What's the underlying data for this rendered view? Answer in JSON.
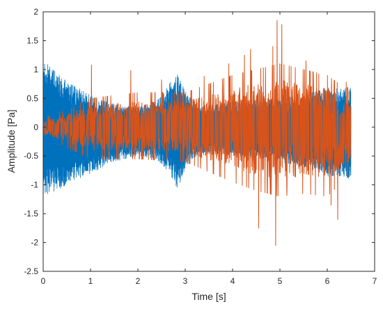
{
  "chart_data": {
    "type": "line",
    "title": "",
    "xlabel": "Time [s]",
    "ylabel": "Amplitude [Pa]",
    "xlim": [
      0,
      7
    ],
    "ylim": [
      -2.5,
      2
    ],
    "xticks": [
      "0",
      "1",
      "2",
      "3",
      "4",
      "5",
      "6",
      "7"
    ],
    "yticks": [
      "2",
      "1.5",
      "1",
      "0.5",
      "0",
      "-0.5",
      "-1",
      "-1.5",
      "-2",
      "-2.5"
    ],
    "grid": false,
    "legend": "none",
    "series": [
      {
        "color": "#0072BD",
        "description": "dense oscillating signal, 0 to 6.5 s",
        "envelope": [
          {
            "t": 0.0,
            "max": 1.15,
            "min": -1.2
          },
          {
            "t": 0.3,
            "max": 0.95,
            "min": -1.1
          },
          {
            "t": 0.6,
            "max": 0.75,
            "min": -0.95
          },
          {
            "t": 1.0,
            "max": 0.55,
            "min": -0.8
          },
          {
            "t": 1.5,
            "max": 0.4,
            "min": -0.6
          },
          {
            "t": 2.0,
            "max": 0.35,
            "min": -0.5
          },
          {
            "t": 2.4,
            "max": 0.45,
            "min": -0.55
          },
          {
            "t": 2.7,
            "max": 0.8,
            "min": -0.85
          },
          {
            "t": 2.85,
            "max": 0.95,
            "min": -1.1
          },
          {
            "t": 3.0,
            "max": 0.6,
            "min": -0.7
          },
          {
            "t": 3.3,
            "max": 0.35,
            "min": -0.45
          },
          {
            "t": 4.0,
            "max": 0.45,
            "min": -0.5
          },
          {
            "t": 5.0,
            "max": 0.5,
            "min": -0.6
          },
          {
            "t": 5.5,
            "max": 0.55,
            "min": -0.7
          },
          {
            "t": 6.0,
            "max": 0.7,
            "min": -0.85
          },
          {
            "t": 6.5,
            "max": 0.7,
            "min": -0.9
          }
        ]
      },
      {
        "color": "#D95319",
        "description": "spiky signal, 0 to 6.5 s",
        "envelope": [
          {
            "t": 0.0,
            "max": 0.15,
            "min": -0.15
          },
          {
            "t": 0.5,
            "max": 0.3,
            "min": -0.35
          },
          {
            "t": 1.0,
            "max": 0.5,
            "min": -0.55
          },
          {
            "t": 2.0,
            "max": 0.6,
            "min": -0.55
          },
          {
            "t": 3.0,
            "max": 0.6,
            "min": -0.6
          },
          {
            "t": 4.0,
            "max": 0.9,
            "min": -0.95
          },
          {
            "t": 4.5,
            "max": 1.0,
            "min": -1.1
          },
          {
            "t": 5.0,
            "max": 1.1,
            "min": -1.2
          },
          {
            "t": 5.5,
            "max": 1.0,
            "min": -1.15
          },
          {
            "t": 6.0,
            "max": 0.9,
            "min": -1.2
          },
          {
            "t": 6.5,
            "max": 0.6,
            "min": -0.8
          }
        ],
        "spikes": [
          {
            "t": 1.02,
            "v": 1.08
          },
          {
            "t": 1.85,
            "v": 0.98
          },
          {
            "t": 2.5,
            "v": 0.82
          },
          {
            "t": 3.4,
            "v": 0.88
          },
          {
            "t": 3.92,
            "v": 1.1
          },
          {
            "t": 4.25,
            "v": 1.25
          },
          {
            "t": 4.38,
            "v": 1.35
          },
          {
            "t": 4.55,
            "v": -1.75
          },
          {
            "t": 4.85,
            "v": 1.4
          },
          {
            "t": 4.91,
            "v": -2.05
          },
          {
            "t": 4.94,
            "v": 1.85
          },
          {
            "t": 5.04,
            "v": 1.78
          },
          {
            "t": 5.15,
            "v": -1.05
          },
          {
            "t": 5.55,
            "v": 1.15
          },
          {
            "t": 5.82,
            "v": 0.92
          },
          {
            "t": 6.08,
            "v": -1.35
          },
          {
            "t": 6.22,
            "v": -1.6
          },
          {
            "t": 6.4,
            "v": 0.78
          }
        ]
      }
    ]
  }
}
